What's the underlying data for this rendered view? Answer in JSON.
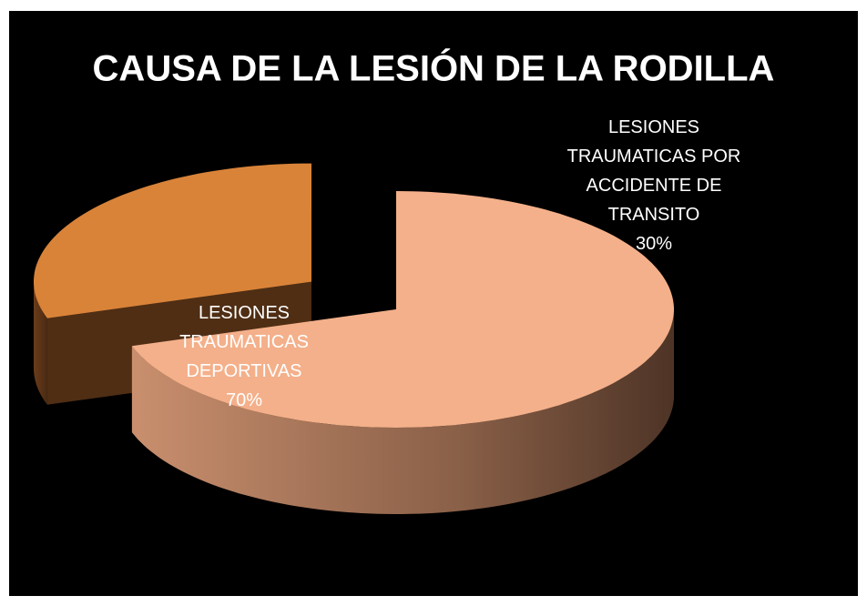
{
  "chart_data": {
    "type": "pie3d",
    "title": "CAUSA DE LA LESIÓN DE LA RODILLA",
    "categories": [
      "LESIONES TRAUMATICAS DEPORTIVAS",
      "LESIONES TRAUMATICAS POR ACCIDENTE DE TRANSITO"
    ],
    "values": [
      70,
      30
    ],
    "value_labels": [
      "70%",
      "30%"
    ],
    "colors": [
      "#f4b08a",
      "#d98339"
    ],
    "exploded": [
      false,
      true
    ]
  }
}
